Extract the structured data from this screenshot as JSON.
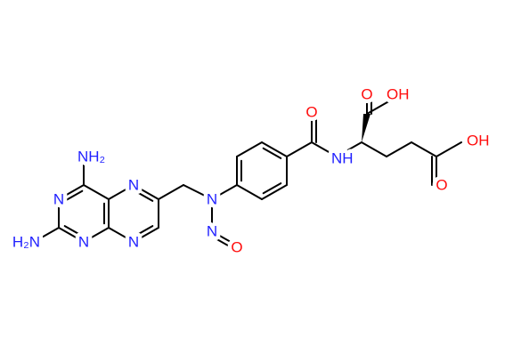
{
  "atoms": [
    {
      "label": "NH₂"
    },
    {
      "label": "N"
    },
    {
      "label": "N"
    },
    {
      "label": "N"
    },
    {
      "label": "N"
    },
    {
      "label": "H₂N"
    },
    {
      "label": "N"
    },
    {
      "label": "N"
    },
    {
      "label": "O"
    },
    {
      "label": "O"
    },
    {
      "label": "NH"
    },
    {
      "label": "O"
    },
    {
      "label": "OH"
    },
    {
      "label": "O"
    },
    {
      "label": "OH"
    }
  ]
}
